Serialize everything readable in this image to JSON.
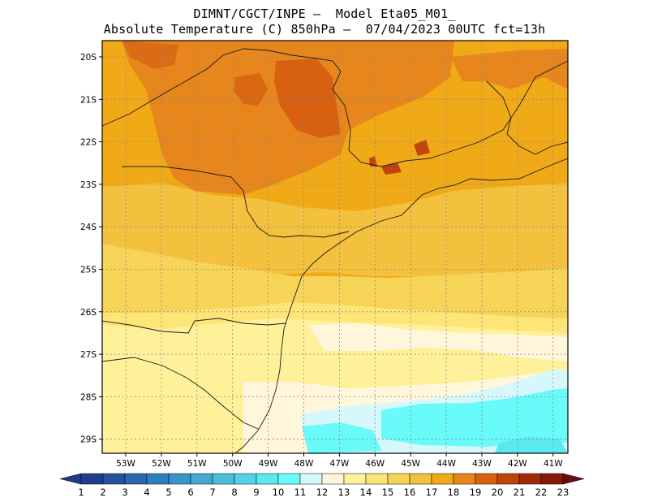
{
  "title": {
    "line1": "DIMNT/CGCT/INPE –  Model Eta05_M01_",
    "line2": "Absolute Temperature (C) 850hPa –  07/04/2023 00UTC fct=13h"
  },
  "latitude_labels": [
    "20S",
    "21S",
    "22S",
    "23S",
    "24S",
    "25S",
    "26S",
    "27S",
    "28S",
    "29S"
  ],
  "longitude_labels": [
    "53W",
    "52W",
    "51W",
    "50W",
    "49W",
    "48W",
    "47W",
    "46W",
    "45W",
    "44W",
    "43W",
    "42W",
    "41W"
  ],
  "colorbar": {
    "labels": [
      "1",
      "2",
      "3",
      "4",
      "5",
      "6",
      "7",
      "8",
      "9",
      "10",
      "11",
      "12",
      "13",
      "14",
      "15",
      "16",
      "17",
      "18",
      "19",
      "20",
      "21",
      "22",
      "23"
    ],
    "colors": [
      "#1f3d8f",
      "#24529f",
      "#2a67af",
      "#2f7fbf",
      "#3994c9",
      "#44a8d2",
      "#4bbdda",
      "#53d2e3",
      "#5ae9ee",
      "#68fbfa",
      "#d6f8fc",
      "#fff6dc",
      "#fff19a",
      "#fde578",
      "#f6d458",
      "#f3c13e",
      "#f1aa17",
      "#e7861c",
      "#d76111",
      "#c0440b",
      "#a22b07",
      "#861a06",
      "#6a0912"
    ],
    "under_color": "#203a86",
    "over_color": "#6a0b16"
  }
}
